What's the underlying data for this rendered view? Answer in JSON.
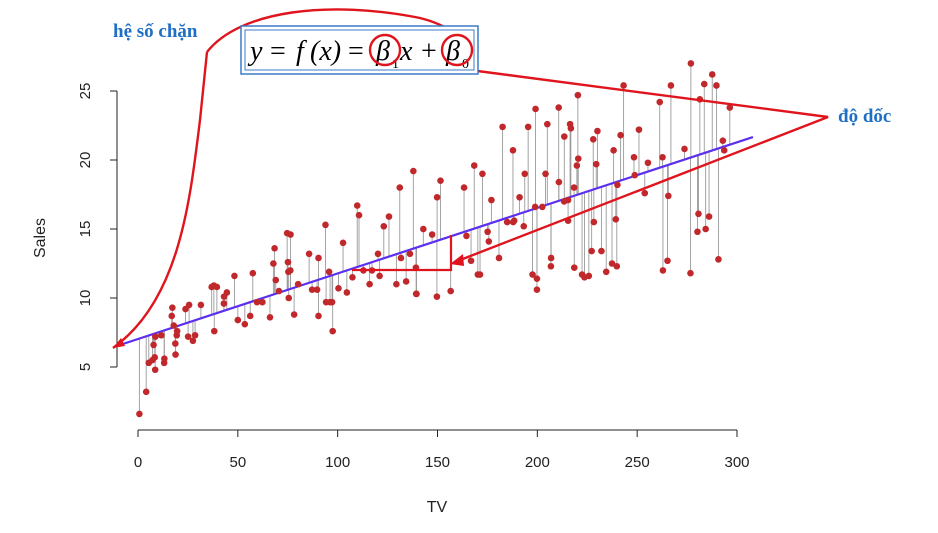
{
  "chart_data": {
    "type": "scatter",
    "title": "",
    "xlabel": "TV",
    "ylabel": "Sales",
    "xlim": [
      -10,
      310
    ],
    "ylim": [
      0,
      28
    ],
    "xticks": [
      0,
      50,
      100,
      150,
      200,
      250,
      300
    ],
    "yticks": [
      5,
      10,
      15,
      20,
      25
    ],
    "regression": {
      "intercept": 7.03,
      "slope": 0.0475,
      "x_from": -10,
      "x_to": 308
    },
    "colors": {
      "points": "#c0282c",
      "line": "#5b2ff0",
      "residuals": "#9a9a9a",
      "annotation": "#e0141c",
      "label": "#1f6fc4"
    },
    "points": [
      [
        0.7,
        1.6
      ],
      [
        4.1,
        3.2
      ],
      [
        5.4,
        5.3
      ],
      [
        7.3,
        5.5
      ],
      [
        7.8,
        6.6
      ],
      [
        8.4,
        5.7
      ],
      [
        8.6,
        4.8
      ],
      [
        8.7,
        7.2
      ],
      [
        11.7,
        7.3
      ],
      [
        13.1,
        5.3
      ],
      [
        13.2,
        5.6
      ],
      [
        16.9,
        8.7
      ],
      [
        17.2,
        9.3
      ],
      [
        17.9,
        8.0
      ],
      [
        18.7,
        6.7
      ],
      [
        18.8,
        5.9
      ],
      [
        19.4,
        7.3
      ],
      [
        19.6,
        7.6
      ],
      [
        23.8,
        9.2
      ],
      [
        25.1,
        7.2
      ],
      [
        25.6,
        9.5
      ],
      [
        27.5,
        6.9
      ],
      [
        28.6,
        7.3
      ],
      [
        31.5,
        9.5
      ],
      [
        36.9,
        10.8
      ],
      [
        38.0,
        10.9
      ],
      [
        38.2,
        7.6
      ],
      [
        39.5,
        10.8
      ],
      [
        43.0,
        9.6
      ],
      [
        43.1,
        10.1
      ],
      [
        44.5,
        10.4
      ],
      [
        48.3,
        11.6
      ],
      [
        50.0,
        8.4
      ],
      [
        53.5,
        8.1
      ],
      [
        56.2,
        8.7
      ],
      [
        57.5,
        11.8
      ],
      [
        59.6,
        9.7
      ],
      [
        62.3,
        9.7
      ],
      [
        66.1,
        8.6
      ],
      [
        67.8,
        12.5
      ],
      [
        68.4,
        13.6
      ],
      [
        69.0,
        11.3
      ],
      [
        70.6,
        10.5
      ],
      [
        74.7,
        14.7
      ],
      [
        75.1,
        12.6
      ],
      [
        75.3,
        11.9
      ],
      [
        75.5,
        10.0
      ],
      [
        76.3,
        12.0
      ],
      [
        76.4,
        14.6
      ],
      [
        78.2,
        8.8
      ],
      [
        80.2,
        11.0
      ],
      [
        85.7,
        13.2
      ],
      [
        87.2,
        10.6
      ],
      [
        89.7,
        10.6
      ],
      [
        90.4,
        12.9
      ],
      [
        90.4,
        8.7
      ],
      [
        93.9,
        15.3
      ],
      [
        94.2,
        9.7
      ],
      [
        95.7,
        11.9
      ],
      [
        96.2,
        9.7
      ],
      [
        97.2,
        9.7
      ],
      [
        97.5,
        7.6
      ],
      [
        100.4,
        10.7
      ],
      [
        102.7,
        14.0
      ],
      [
        104.6,
        10.4
      ],
      [
        107.4,
        11.5
      ],
      [
        109.8,
        16.7
      ],
      [
        110.7,
        16.0
      ],
      [
        112.9,
        12.0
      ],
      [
        116.0,
        11.0
      ],
      [
        117.2,
        12.0
      ],
      [
        120.2,
        13.2
      ],
      [
        121.0,
        11.6
      ],
      [
        123.1,
        15.2
      ],
      [
        125.7,
        15.9
      ],
      [
        129.4,
        11.0
      ],
      [
        131.1,
        18.0
      ],
      [
        131.7,
        12.9
      ],
      [
        134.3,
        11.2
      ],
      [
        136.2,
        13.2
      ],
      [
        137.9,
        19.2
      ],
      [
        139.2,
        12.2
      ],
      [
        139.3,
        10.3
      ],
      [
        139.5,
        10.3
      ],
      [
        142.9,
        15.0
      ],
      [
        147.3,
        14.6
      ],
      [
        149.7,
        10.1
      ],
      [
        149.8,
        17.3
      ],
      [
        151.5,
        18.5
      ],
      [
        156.6,
        10.5
      ],
      [
        163.3,
        18.0
      ],
      [
        164.5,
        14.5
      ],
      [
        166.8,
        12.7
      ],
      [
        168.4,
        19.6
      ],
      [
        170.2,
        11.7
      ],
      [
        171.3,
        11.7
      ],
      [
        172.5,
        19.0
      ],
      [
        175.1,
        14.8
      ],
      [
        175.7,
        14.1
      ],
      [
        177.0,
        17.1
      ],
      [
        180.8,
        12.9
      ],
      [
        182.6,
        22.4
      ],
      [
        184.9,
        15.5
      ],
      [
        187.8,
        20.7
      ],
      [
        187.9,
        15.5
      ],
      [
        188.4,
        15.6
      ],
      [
        191.1,
        17.3
      ],
      [
        193.2,
        15.2
      ],
      [
        193.7,
        19.0
      ],
      [
        195.4,
        22.4
      ],
      [
        197.6,
        11.7
      ],
      [
        198.9,
        16.6
      ],
      [
        199.1,
        23.7
      ],
      [
        199.8,
        11.4
      ],
      [
        199.8,
        10.6
      ],
      [
        202.5,
        16.6
      ],
      [
        204.1,
        19.0
      ],
      [
        205.0,
        22.6
      ],
      [
        206.8,
        12.3
      ],
      [
        206.9,
        12.9
      ],
      [
        210.7,
        23.8
      ],
      [
        210.8,
        18.4
      ],
      [
        213.4,
        17.0
      ],
      [
        213.5,
        21.7
      ],
      [
        215.4,
        17.1
      ],
      [
        215.4,
        15.6
      ],
      [
        216.4,
        22.6
      ],
      [
        216.8,
        22.3
      ],
      [
        218.4,
        18.0
      ],
      [
        218.5,
        12.2
      ],
      [
        219.8,
        19.6
      ],
      [
        220.3,
        24.7
      ],
      [
        220.5,
        20.1
      ],
      [
        222.4,
        11.7
      ],
      [
        223.6,
        11.5
      ],
      [
        225.8,
        11.6
      ],
      [
        227.2,
        13.4
      ],
      [
        228.0,
        21.5
      ],
      [
        228.3,
        15.5
      ],
      [
        229.5,
        19.7
      ],
      [
        230.1,
        22.1
      ],
      [
        232.1,
        13.4
      ],
      [
        234.5,
        11.9
      ],
      [
        237.4,
        12.5
      ],
      [
        238.2,
        20.7
      ],
      [
        239.3,
        15.7
      ],
      [
        239.8,
        12.3
      ],
      [
        240.1,
        18.2
      ],
      [
        241.7,
        21.8
      ],
      [
        243.2,
        25.4
      ],
      [
        248.4,
        20.2
      ],
      [
        248.8,
        18.9
      ],
      [
        250.9,
        22.2
      ],
      [
        253.8,
        17.6
      ],
      [
        255.4,
        19.8
      ],
      [
        261.3,
        24.2
      ],
      [
        262.7,
        20.2
      ],
      [
        262.9,
        12.0
      ],
      [
        265.2,
        12.7
      ],
      [
        265.6,
        17.4
      ],
      [
        266.9,
        25.4
      ],
      [
        273.7,
        20.8
      ],
      [
        276.7,
        11.8
      ],
      [
        276.9,
        27.0
      ],
      [
        280.2,
        14.8
      ],
      [
        280.7,
        16.1
      ],
      [
        281.4,
        24.4
      ],
      [
        283.6,
        25.5
      ],
      [
        284.3,
        15.0
      ],
      [
        286.0,
        15.9
      ],
      [
        287.6,
        26.2
      ],
      [
        289.7,
        25.4
      ],
      [
        290.7,
        12.8
      ],
      [
        292.9,
        21.4
      ],
      [
        293.6,
        20.7
      ],
      [
        296.4,
        23.8
      ]
    ]
  },
  "annotations": {
    "intercept_label": "hệ số chặn",
    "slope_label": "độ dốc"
  },
  "equation": {
    "lhs": "y",
    "equals": "=",
    "func": "f",
    "arg": "(x)",
    "beta": "β",
    "sub1": "1",
    "x": "x",
    "plus": "+",
    "sub0": "0"
  }
}
